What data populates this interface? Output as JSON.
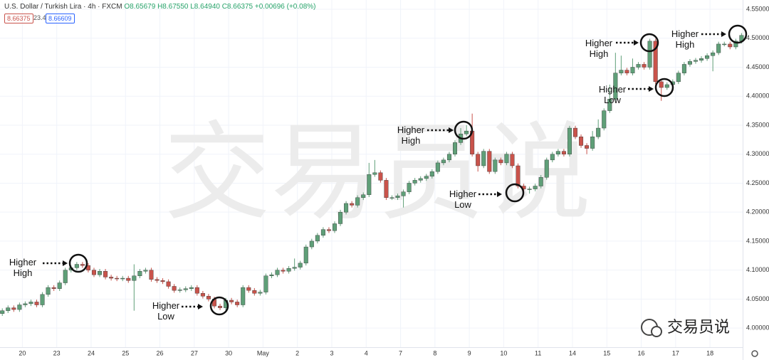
{
  "chart_data": {
    "type": "candlestick",
    "header": {
      "symbol": "U.S. Dollar / Turkish Lira · 4h · FXCM",
      "ohlc_text": "O8.65679 H8.67550 L8.64940 C8.66375 +0.00696 (+0.08%)",
      "badges": [
        "8.66375",
        "23.4",
        "8.66609"
      ]
    },
    "watermark": "交易员说",
    "logo": "交易员说",
    "up_color": "#5f9f78",
    "down_color": "#c9534b",
    "grid": true,
    "xlim": [
      -0.4,
      129.2
    ],
    "xticks": [
      {
        "value": 3.5,
        "label": "20"
      },
      {
        "value": 9.5,
        "label": "23"
      },
      {
        "value": 15.5,
        "label": "24"
      },
      {
        "value": 21.5,
        "label": "25"
      },
      {
        "value": 27.5,
        "label": "26"
      },
      {
        "value": 33.5,
        "label": "27"
      },
      {
        "value": 39.5,
        "label": "30"
      },
      {
        "value": 45.5,
        "label": "May"
      },
      {
        "value": 51.5,
        "label": "2"
      },
      {
        "value": 57.5,
        "label": "3"
      },
      {
        "value": 63.5,
        "label": "4"
      },
      {
        "value": 69.5,
        "label": "7"
      },
      {
        "value": 75.5,
        "label": "8"
      },
      {
        "value": 81.5,
        "label": "9"
      },
      {
        "value": 87.5,
        "label": "10"
      },
      {
        "value": 93.5,
        "label": "11"
      },
      {
        "value": 99.5,
        "label": "14"
      },
      {
        "value": 105.5,
        "label": "15"
      },
      {
        "value": 111.5,
        "label": "16"
      },
      {
        "value": 117.5,
        "label": "17"
      },
      {
        "value": 123.5,
        "label": "18"
      }
    ],
    "ylim": [
      3.967,
      4.566
    ],
    "yticks": [
      {
        "value": 4.0,
        "label": "4.00000"
      },
      {
        "value": 4.05,
        "label": "4.05000"
      },
      {
        "value": 4.1,
        "label": "4.10000"
      },
      {
        "value": 4.15,
        "label": "4.15000"
      },
      {
        "value": 4.2,
        "label": "4.20000"
      },
      {
        "value": 4.25,
        "label": "4.25000"
      },
      {
        "value": 4.3,
        "label": "4.30000"
      },
      {
        "value": 4.35,
        "label": "4.35000"
      },
      {
        "value": 4.4,
        "label": "4.40000"
      },
      {
        "value": 4.45,
        "label": "4.45000"
      },
      {
        "value": 4.5,
        "label": "4.50000"
      },
      {
        "value": 4.55,
        "label": "4.55000"
      }
    ],
    "open": [
      4.025,
      4.03,
      4.035,
      4.032,
      4.04,
      4.042,
      4.045,
      4.04,
      4.058,
      4.07,
      4.068,
      4.078,
      4.1,
      4.104,
      4.11,
      4.108,
      4.1,
      4.092,
      4.098,
      4.088,
      4.086,
      4.085,
      4.086,
      4.082,
      4.09,
      4.098,
      4.1,
      4.084,
      4.082,
      4.08,
      4.072,
      4.065,
      4.066,
      4.068,
      4.07,
      4.06,
      4.055,
      4.05,
      4.038,
      4.035,
      4.048,
      4.045,
      4.04,
      4.07,
      4.065,
      4.06,
      4.062,
      4.09,
      4.092,
      4.1,
      4.098,
      4.103,
      4.105,
      4.112,
      4.14,
      4.15,
      4.16,
      4.17,
      4.168,
      4.18,
      4.2,
      4.215,
      4.212,
      4.225,
      4.23,
      4.265,
      4.268,
      4.255,
      4.225,
      4.225,
      4.228,
      4.235,
      4.25,
      4.255,
      4.258,
      4.262,
      4.27,
      4.285,
      4.29,
      4.3,
      4.32,
      4.335,
      4.34,
      4.3,
      4.28,
      4.305,
      4.27,
      4.29,
      4.285,
      4.3,
      4.28,
      4.245,
      4.24,
      4.24,
      4.245,
      4.26,
      4.29,
      4.3,
      4.305,
      4.3,
      4.345,
      4.33,
      4.315,
      4.31,
      4.33,
      4.345,
      4.375,
      4.395,
      4.44,
      4.445,
      4.44,
      4.45,
      4.455,
      4.45,
      4.495,
      4.425,
      4.415,
      4.42,
      4.425,
      4.44,
      4.455,
      4.46,
      4.462,
      4.465,
      4.47,
      4.475,
      4.49,
      4.49,
      4.485,
      4.495
    ],
    "high": [
      4.034,
      4.039,
      4.039,
      4.044,
      4.046,
      4.049,
      4.049,
      4.062,
      4.074,
      4.074,
      4.082,
      4.104,
      4.108,
      4.114,
      4.114,
      4.112,
      4.104,
      4.102,
      4.102,
      4.092,
      4.09,
      4.09,
      4.09,
      4.11,
      4.102,
      4.104,
      4.104,
      4.088,
      4.086,
      4.084,
      4.076,
      4.07,
      4.072,
      4.074,
      4.074,
      4.064,
      4.059,
      4.054,
      4.042,
      4.052,
      4.052,
      4.049,
      4.074,
      4.074,
      4.069,
      4.066,
      4.094,
      4.096,
      4.104,
      4.104,
      4.107,
      4.12,
      4.116,
      4.144,
      4.154,
      4.164,
      4.174,
      4.174,
      4.184,
      4.204,
      4.219,
      4.219,
      4.229,
      4.234,
      4.285,
      4.29,
      4.272,
      4.259,
      4.229,
      4.232,
      4.239,
      4.254,
      4.259,
      4.262,
      4.266,
      4.274,
      4.289,
      4.294,
      4.304,
      4.324,
      4.345,
      4.35,
      4.37,
      4.304,
      4.309,
      4.309,
      4.294,
      4.294,
      4.304,
      4.304,
      4.284,
      4.249,
      4.244,
      4.249,
      4.264,
      4.294,
      4.304,
      4.309,
      4.309,
      4.349,
      4.349,
      4.334,
      4.319,
      4.34,
      4.36,
      4.379,
      4.42,
      4.475,
      4.47,
      4.449,
      4.465,
      4.459,
      4.459,
      4.499,
      4.499,
      4.429,
      4.424,
      4.429,
      4.444,
      4.459,
      4.464,
      4.466,
      4.469,
      4.474,
      4.479,
      4.494,
      4.494,
      4.494,
      4.499,
      4.509
    ],
    "low": [
      4.021,
      4.026,
      4.028,
      4.028,
      4.036,
      4.038,
      4.036,
      4.036,
      4.054,
      4.064,
      4.064,
      4.074,
      4.096,
      4.1,
      4.104,
      4.096,
      4.088,
      4.088,
      4.084,
      4.082,
      4.081,
      4.081,
      4.078,
      4.03,
      4.086,
      4.094,
      4.08,
      4.078,
      4.076,
      4.068,
      4.061,
      4.061,
      4.062,
      4.064,
      4.056,
      4.051,
      4.046,
      4.034,
      4.031,
      4.031,
      4.041,
      4.036,
      4.036,
      4.061,
      4.056,
      4.056,
      4.058,
      4.086,
      4.088,
      4.094,
      4.094,
      4.099,
      4.101,
      4.108,
      4.136,
      4.146,
      4.156,
      4.164,
      4.164,
      4.176,
      4.196,
      4.208,
      4.208,
      4.221,
      4.226,
      4.261,
      4.251,
      4.221,
      4.221,
      4.221,
      4.208,
      4.231,
      4.246,
      4.251,
      4.254,
      4.258,
      4.266,
      4.281,
      4.286,
      4.296,
      4.316,
      4.331,
      4.296,
      4.27,
      4.276,
      4.266,
      4.266,
      4.281,
      4.281,
      4.276,
      4.241,
      4.23,
      4.232,
      4.236,
      4.241,
      4.256,
      4.286,
      4.296,
      4.296,
      4.296,
      4.326,
      4.311,
      4.3,
      4.306,
      4.326,
      4.341,
      4.371,
      4.391,
      4.436,
      4.436,
      4.436,
      4.446,
      4.446,
      4.446,
      4.421,
      4.392,
      4.411,
      4.416,
      4.421,
      4.436,
      4.451,
      4.456,
      4.458,
      4.461,
      4.443,
      4.471,
      4.486,
      4.481,
      4.481,
      4.491
    ],
    "close": [
      4.03,
      4.035,
      4.032,
      4.04,
      4.042,
      4.045,
      4.04,
      4.058,
      4.07,
      4.068,
      4.078,
      4.1,
      4.104,
      4.11,
      4.108,
      4.1,
      4.092,
      4.098,
      4.088,
      4.086,
      4.085,
      4.086,
      4.082,
      4.09,
      4.098,
      4.1,
      4.084,
      4.082,
      4.08,
      4.072,
      4.065,
      4.066,
      4.068,
      4.07,
      4.06,
      4.055,
      4.05,
      4.038,
      4.035,
      4.048,
      4.045,
      4.04,
      4.07,
      4.065,
      4.06,
      4.062,
      4.09,
      4.092,
      4.1,
      4.098,
      4.103,
      4.105,
      4.112,
      4.14,
      4.15,
      4.16,
      4.17,
      4.168,
      4.18,
      4.2,
      4.215,
      4.212,
      4.225,
      4.23,
      4.265,
      4.268,
      4.255,
      4.225,
      4.225,
      4.228,
      4.235,
      4.25,
      4.255,
      4.258,
      4.262,
      4.27,
      4.285,
      4.29,
      4.3,
      4.32,
      4.335,
      4.34,
      4.3,
      4.28,
      4.305,
      4.27,
      4.29,
      4.285,
      4.3,
      4.28,
      4.245,
      4.24,
      4.24,
      4.245,
      4.26,
      4.29,
      4.3,
      4.305,
      4.3,
      4.345,
      4.33,
      4.315,
      4.31,
      4.33,
      4.345,
      4.375,
      4.395,
      4.44,
      4.445,
      4.44,
      4.45,
      4.455,
      4.45,
      4.495,
      4.425,
      4.415,
      4.42,
      4.425,
      4.44,
      4.455,
      4.46,
      4.462,
      4.465,
      4.47,
      4.475,
      4.49,
      4.49,
      4.485,
      4.495,
      4.505
    ],
    "annotations": [
      "Higher High",
      "Higher Low",
      "Higher High",
      "Higher Low",
      "Higher High",
      "Higher Low",
      "Higher High"
    ]
  }
}
